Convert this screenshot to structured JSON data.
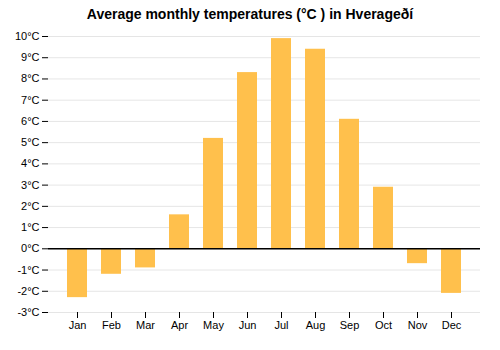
{
  "chart_data": {
    "type": "bar",
    "title": "Average monthly temperatures (°C ) in Hverageðí",
    "categories": [
      "Jan",
      "Feb",
      "Mar",
      "Apr",
      "May",
      "Jun",
      "Jul",
      "Aug",
      "Sep",
      "Oct",
      "Nov",
      "Dec"
    ],
    "values": [
      -2.3,
      -1.2,
      -0.9,
      1.6,
      5.2,
      8.3,
      9.9,
      9.4,
      6.1,
      2.9,
      -0.7,
      -2.1
    ],
    "color": "#FFC04C",
    "ylim": [
      -3,
      10
    ],
    "yticks": [
      {
        "value": -3,
        "label": "-3°C"
      },
      {
        "value": -2,
        "label": "-2°C"
      },
      {
        "value": -1,
        "label": "-1°C"
      },
      {
        "value": 0,
        "label": "0°C"
      },
      {
        "value": 1,
        "label": "1°C"
      },
      {
        "value": 2,
        "label": "2°C"
      },
      {
        "value": 3,
        "label": "3°C"
      },
      {
        "value": 4,
        "label": "4°C"
      },
      {
        "value": 5,
        "label": "5°C"
      },
      {
        "value": 6,
        "label": "6°C"
      },
      {
        "value": 7,
        "label": "7°C"
      },
      {
        "value": 8,
        "label": "8°C"
      },
      {
        "value": 9,
        "label": "9°C"
      },
      {
        "value": 10,
        "label": "10°C"
      }
    ],
    "grid": true
  }
}
